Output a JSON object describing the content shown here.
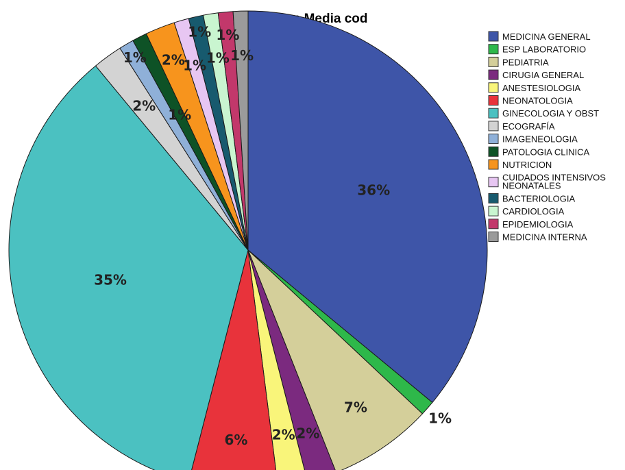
{
  "chart_data": {
    "type": "pie",
    "title": "Esp Media cod",
    "legend_position": "right",
    "slices": [
      {
        "label": "MEDICINA GENERAL",
        "value": 36,
        "display": "36%",
        "color": "#3e55a8"
      },
      {
        "label": "ESP LABORATORIO",
        "value": 1,
        "display": "1%",
        "color": "#2eb84a"
      },
      {
        "label": "PEDIATRIA",
        "value": 7,
        "display": "7%",
        "color": "#d4cf9a"
      },
      {
        "label": "CIRUGIA GENERAL",
        "value": 2,
        "display": "2%",
        "color": "#7b2a7f"
      },
      {
        "label": "ANESTESIOLOGIA",
        "value": 2,
        "display": "2%",
        "color": "#f9f57a"
      },
      {
        "label": "NEONATOLOGIA",
        "value": 6,
        "display": "6%",
        "color": "#e8333b"
      },
      {
        "label": "GINECOLOGIA Y OBST",
        "value": 35,
        "display": "35%",
        "color": "#4bc1c1"
      },
      {
        "label": "ECOGRAFÍA",
        "value": 2,
        "display": "2%",
        "color": "#d3d3d3"
      },
      {
        "label": "IMAGENEOLOGIA",
        "value": 1,
        "display": "1%",
        "color": "#8fb0d8"
      },
      {
        "label": "PATOLOGIA CLINICA",
        "value": 1,
        "display": "1%",
        "color": "#0e5226"
      },
      {
        "label": "NUTRICION",
        "value": 2,
        "display": "2%",
        "color": "#f7941d"
      },
      {
        "label": "CUIDADOS INTENSIVOS NEONATALES",
        "value": 1,
        "display": "1%",
        "color": "#e7c6f2"
      },
      {
        "label": "BACTERIOLOGIA",
        "value": 1,
        "display": "1%",
        "color": "#175a6e"
      },
      {
        "label": "CARDIOLOGIA",
        "value": 1,
        "display": "1%",
        "color": "#c9f5d0"
      },
      {
        "label": "EPIDEMIOLOGIA",
        "value": 1,
        "display": "1%",
        "color": "#c2386b"
      },
      {
        "label": "MEDICINA INTERNA",
        "value": 1,
        "display": "1%",
        "color": "#9b9b9b"
      }
    ]
  }
}
